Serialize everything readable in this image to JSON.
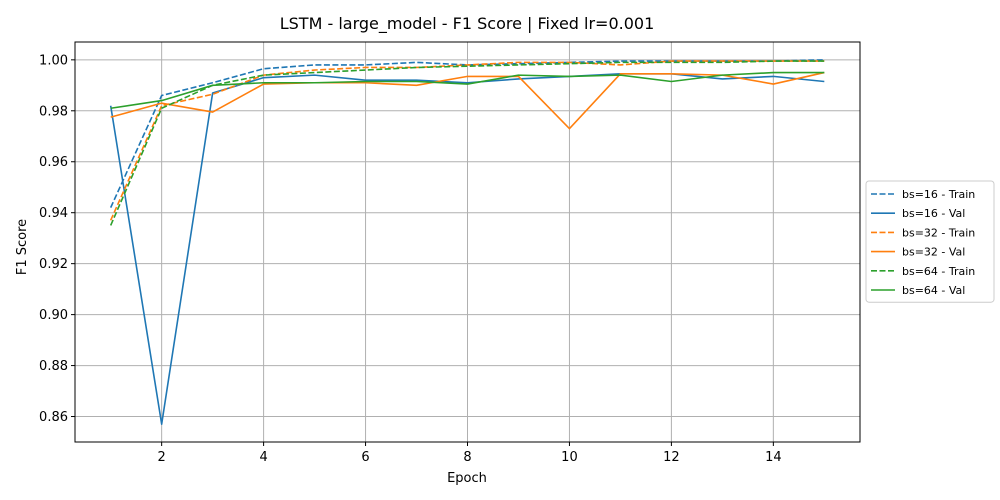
{
  "chart_data": {
    "type": "line",
    "title": "LSTM - large_model - F1 Score | Fixed lr=0.001",
    "xlabel": "Epoch",
    "ylabel": "F1 Score",
    "xlim": [
      0.3,
      15.7
    ],
    "ylim": [
      0.85,
      1.007
    ],
    "xticks": [
      2,
      4,
      6,
      8,
      10,
      12,
      14
    ],
    "yticks": [
      0.86,
      0.88,
      0.9,
      0.92,
      0.94,
      0.96,
      0.98,
      1.0
    ],
    "ytick_labels": [
      "0.86",
      "0.88",
      "0.90",
      "0.92",
      "0.94",
      "0.96",
      "0.98",
      "1.00"
    ],
    "grid": true,
    "legend_position": "right",
    "x": [
      1,
      2,
      3,
      4,
      5,
      6,
      7,
      8,
      9,
      10,
      11,
      12,
      13,
      14,
      15
    ],
    "series": [
      {
        "name": "bs=16 - Train",
        "color": "#1f77b4",
        "style": "dashed",
        "values": [
          0.942,
          0.986,
          0.991,
          0.9965,
          0.998,
          0.998,
          0.999,
          0.998,
          0.9985,
          0.999,
          0.9995,
          0.9995,
          0.9995,
          0.9995,
          1.0
        ]
      },
      {
        "name": "bs=16 - Val",
        "color": "#1f77b4",
        "style": "solid",
        "values": [
          0.982,
          0.857,
          0.987,
          0.993,
          0.994,
          0.992,
          0.992,
          0.991,
          0.9925,
          0.9935,
          0.9945,
          0.9945,
          0.9925,
          0.9935,
          0.9915
        ]
      },
      {
        "name": "bs=32 - Train",
        "color": "#ff7f0e",
        "style": "dashed",
        "values": [
          0.937,
          0.982,
          0.9865,
          0.994,
          0.996,
          0.997,
          0.997,
          0.998,
          0.999,
          0.999,
          0.998,
          0.9995,
          0.9995,
          0.9995,
          0.9995
        ]
      },
      {
        "name": "bs=32 - Val",
        "color": "#ff7f0e",
        "style": "solid",
        "values": [
          0.9775,
          0.983,
          0.9795,
          0.9905,
          0.991,
          0.991,
          0.99,
          0.9935,
          0.9935,
          0.973,
          0.9945,
          0.9945,
          0.994,
          0.9905,
          0.995
        ]
      },
      {
        "name": "bs=64 - Train",
        "color": "#2ca02c",
        "style": "dashed",
        "values": [
          0.935,
          0.981,
          0.99,
          0.994,
          0.995,
          0.996,
          0.997,
          0.9975,
          0.998,
          0.9985,
          0.999,
          0.999,
          0.999,
          0.9995,
          0.9995
        ]
      },
      {
        "name": "bs=64 - Val",
        "color": "#2ca02c",
        "style": "solid",
        "values": [
          0.981,
          0.984,
          0.99,
          0.991,
          0.991,
          0.9915,
          0.9915,
          0.9905,
          0.994,
          0.9935,
          0.994,
          0.9915,
          0.994,
          0.995,
          0.995
        ]
      }
    ]
  }
}
